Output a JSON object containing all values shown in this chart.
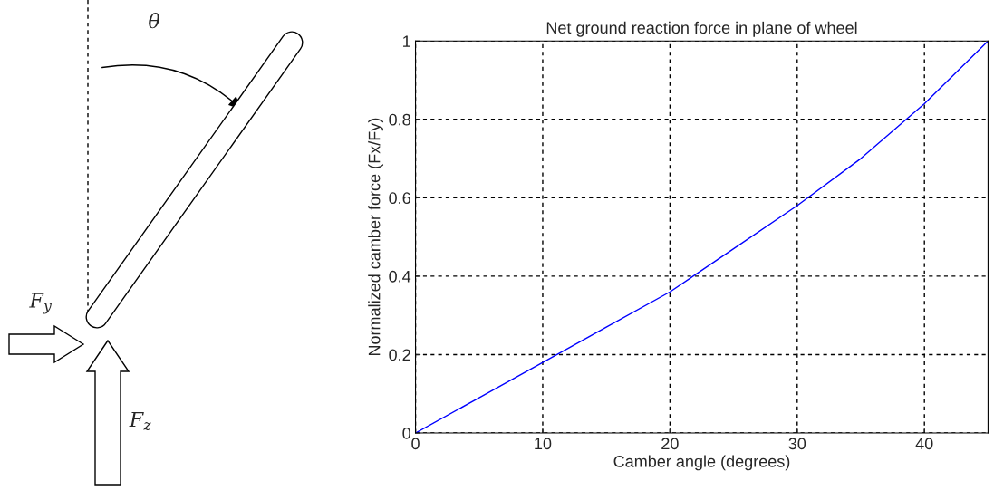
{
  "chart_data": {
    "type": "line",
    "title": "Net ground reaction force in plane of wheel",
    "xlabel": "Camber angle (degrees)",
    "ylabel": "Normalized camber force (Fx/Fy)",
    "x": [
      0,
      5,
      10,
      15,
      20,
      25,
      30,
      35,
      40,
      45
    ],
    "series": [
      {
        "color": "#0000ff",
        "values": [
          0,
          0.09,
          0.18,
          0.27,
          0.36,
          0.47,
          0.58,
          0.7,
          0.84,
          1
        ]
      }
    ],
    "xlim": [
      0,
      45
    ],
    "xticks": [
      0,
      10,
      20,
      30,
      40
    ],
    "ylim": [
      0,
      1
    ],
    "yticks": [
      0,
      0.2,
      0.4,
      0.6,
      0.8,
      1
    ],
    "grid": true,
    "annotations": [
      "θ",
      "F$_{y}$",
      "F$_{z}$"
    ]
  }
}
